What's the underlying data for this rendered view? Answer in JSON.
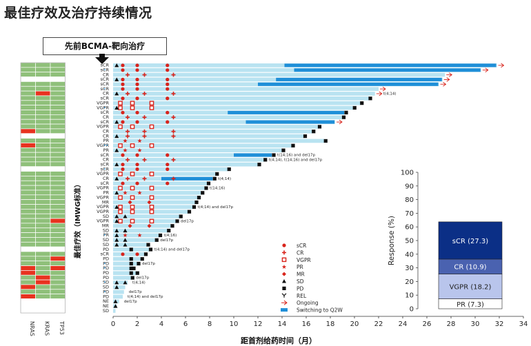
{
  "title": "最佳疗效及治疗持续情况",
  "prior_therapy_label": "先前BCMA-靶向治疗",
  "colors": {
    "bar_light": "#b9e3f1",
    "bar_switch": "#1f8fd8",
    "mutation_wt": "#8fc07a",
    "mutation_mut": "#e8321f",
    "mutation_na": "#ffffff",
    "marker_red": "#d8241c",
    "marker_black": "#111111",
    "resp_scr": "#0b2f86",
    "resp_cr": "#4a62b0",
    "resp_vgpr": "#b9c5ec",
    "resp_pr": "#ffffff"
  },
  "chart_data": [
    {
      "type": "swimmer",
      "xlabel": "距首剂给药时间（月）",
      "ylabel": "最佳疗效（IMWG标准）",
      "x_ticks": [
        0,
        2,
        4,
        6,
        8,
        10,
        12,
        14,
        16,
        18,
        20,
        22,
        24,
        26,
        28,
        30,
        32,
        34
      ],
      "xlim": [
        0,
        34
      ],
      "mutation_columns": [
        "NRAS",
        "KRAS",
        "TP53"
      ],
      "legend": [
        "sCR",
        "CR",
        "VGPR",
        "PR",
        "MR",
        "SD",
        "PD",
        "REL",
        "Ongoing",
        "Switching to Q2W"
      ],
      "patients": [
        {
          "resp": "sCR",
          "dur": 31.8,
          "ongoing": true,
          "switch": 14.2,
          "mark": "",
          "note": ""
        },
        {
          "resp": "sCR",
          "dur": 30.5,
          "ongoing": true,
          "switch": 15.0,
          "mark": "•",
          "note": ""
        },
        {
          "resp": "CR",
          "dur": 27.5,
          "ongoing": true,
          "switch": 0,
          "mark": "",
          "note": ""
        },
        {
          "resp": "sCR",
          "dur": 27.3,
          "ongoing": true,
          "switch": 13.5,
          "mark": "",
          "note": ""
        },
        {
          "resp": "sCR",
          "dur": 27.0,
          "ongoing": true,
          "switch": 12.0,
          "mark": "",
          "note": ""
        },
        {
          "resp": "sCR",
          "dur": 22.0,
          "ongoing": true,
          "switch": 0,
          "mark": "•",
          "note": ""
        },
        {
          "resp": "CR",
          "dur": 21.7,
          "ongoing": true,
          "switch": 0,
          "mark": "",
          "note": "t(4;14)"
        },
        {
          "resp": "sCR",
          "dur": 21.2,
          "ongoing": false,
          "switch": 0,
          "mark": "",
          "note": ""
        },
        {
          "resp": "VGPR",
          "dur": 20.5,
          "ongoing": false,
          "switch": 0,
          "mark": "",
          "note": ""
        },
        {
          "resp": "VGPR",
          "dur": 19.9,
          "ongoing": false,
          "switch": 0,
          "mark": "•",
          "note": ""
        },
        {
          "resp": "sCR",
          "dur": 19.2,
          "ongoing": false,
          "switch": 9.5,
          "mark": "",
          "note": ""
        },
        {
          "resp": "CR",
          "dur": 19.0,
          "ongoing": false,
          "switch": 0,
          "mark": "",
          "note": ""
        },
        {
          "resp": "sCR",
          "dur": 18.4,
          "ongoing": true,
          "switch": 11.0,
          "mark": "",
          "note": ""
        },
        {
          "resp": "VGPR",
          "dur": 17.0,
          "ongoing": false,
          "switch": 0,
          "mark": "",
          "note": ""
        },
        {
          "resp": "CR",
          "dur": 16.5,
          "ongoing": false,
          "switch": 0,
          "mark": "",
          "note": ""
        },
        {
          "resp": "CR",
          "dur": 15.8,
          "ongoing": false,
          "switch": 0,
          "mark": "",
          "note": ""
        },
        {
          "resp": "PR",
          "dur": 17.5,
          "ongoing": false,
          "switch": 0,
          "mark": "",
          "note": ""
        },
        {
          "resp": "VGPR",
          "dur": 14.8,
          "ongoing": false,
          "switch": 0,
          "mark": "••",
          "note": ""
        },
        {
          "resp": "PR",
          "dur": 14.0,
          "ongoing": false,
          "switch": 0,
          "mark": "",
          "note": ""
        },
        {
          "resp": "sCR",
          "dur": 13.2,
          "ongoing": false,
          "switch": 10.0,
          "mark": "",
          "note": "t(14;16) and del17p"
        },
        {
          "resp": "CR",
          "dur": 12.5,
          "ongoing": false,
          "switch": 0,
          "mark": "",
          "note": "t(4;14), t(14;16) and del17p"
        },
        {
          "resp": "sCR",
          "dur": 12.0,
          "ongoing": false,
          "switch": 0,
          "mark": "",
          "note": ""
        },
        {
          "resp": "sCR",
          "dur": 9.5,
          "ongoing": false,
          "switch": 0,
          "mark": "•",
          "note": ""
        },
        {
          "resp": "VGPR",
          "dur": 8.5,
          "ongoing": false,
          "switch": 0,
          "mark": "",
          "note": ""
        },
        {
          "resp": "CR",
          "dur": 8.3,
          "ongoing": false,
          "switch": 4.0,
          "mark": "",
          "note": "t(4;14)"
        },
        {
          "resp": "sCR",
          "dur": 7.8,
          "ongoing": false,
          "switch": 0,
          "mark": "",
          "note": ""
        },
        {
          "resp": "VGPR",
          "dur": 7.6,
          "ongoing": false,
          "switch": 0,
          "mark": "",
          "note": "t(14;16)"
        },
        {
          "resp": "PR",
          "dur": 7.3,
          "ongoing": false,
          "switch": 0,
          "mark": "",
          "note": ""
        },
        {
          "resp": "VGPR",
          "dur": 7.0,
          "ongoing": false,
          "switch": 0,
          "mark": "",
          "note": ""
        },
        {
          "resp": "MR",
          "dur": 6.8,
          "ongoing": false,
          "switch": 0,
          "mark": "",
          "note": ""
        },
        {
          "resp": "VGPR",
          "dur": 6.6,
          "ongoing": false,
          "switch": 0,
          "mark": "",
          "note": "t(4;14) and del17p"
        },
        {
          "resp": "VGPR",
          "dur": 6.2,
          "ongoing": false,
          "switch": 0,
          "mark": "",
          "note": ""
        },
        {
          "resp": "SD",
          "dur": 5.5,
          "ongoing": false,
          "switch": 0,
          "mark": "",
          "note": ""
        },
        {
          "resp": "VGPR",
          "dur": 5.2,
          "ongoing": false,
          "switch": 0,
          "mark": "",
          "note": "del17p"
        },
        {
          "resp": "MR",
          "dur": 4.8,
          "ongoing": false,
          "switch": 0,
          "mark": "",
          "note": ""
        },
        {
          "resp": "SD",
          "dur": 4.5,
          "ongoing": false,
          "switch": 0,
          "mark": "",
          "note": ""
        },
        {
          "resp": "PR",
          "dur": 3.8,
          "ongoing": false,
          "switch": 0,
          "mark": "•",
          "note": "t(4;16)"
        },
        {
          "resp": "SD",
          "dur": 3.5,
          "ongoing": false,
          "switch": 0,
          "mark": "",
          "note": "del17p"
        },
        {
          "resp": "SD",
          "dur": 2.8,
          "ongoing": false,
          "switch": 0,
          "mark": "",
          "note": ""
        },
        {
          "resp": "PD",
          "dur": 3.0,
          "ongoing": false,
          "switch": 0,
          "mark": "",
          "note": "t(4;14) and del17p"
        },
        {
          "resp": "sCR",
          "dur": 2.6,
          "ongoing": false,
          "switch": 0,
          "mark": "",
          "note": ""
        },
        {
          "resp": "PD",
          "dur": 2.3,
          "ongoing": false,
          "switch": 0,
          "mark": "",
          "note": ""
        },
        {
          "resp": "PD",
          "dur": 2.0,
          "ongoing": false,
          "switch": 0,
          "mark": "•",
          "note": "del17p"
        },
        {
          "resp": "PD",
          "dur": 1.6,
          "ongoing": false,
          "switch": 0,
          "mark": "•",
          "note": ""
        },
        {
          "resp": "PD",
          "dur": 1.9,
          "ongoing": false,
          "switch": 0,
          "mark": "",
          "note": ""
        },
        {
          "resp": "PD",
          "dur": 1.5,
          "ongoing": false,
          "switch": 0,
          "mark": "",
          "note": "del17p"
        },
        {
          "resp": "SD",
          "dur": 1.2,
          "ongoing": false,
          "switch": 0,
          "mark": "•",
          "note": "t(4;14)"
        },
        {
          "resp": "SD",
          "dur": 1.0,
          "ongoing": false,
          "switch": 0,
          "mark": "",
          "note": ""
        },
        {
          "resp": "PD",
          "dur": 0.9,
          "ongoing": false,
          "switch": 0,
          "mark": "•",
          "note": "del17p"
        },
        {
          "resp": "PD",
          "dur": 0.8,
          "ongoing": false,
          "switch": 0,
          "mark": "",
          "note": "t(4;14) and del17p"
        },
        {
          "resp": "NE",
          "dur": 0.5,
          "ongoing": false,
          "switch": 0,
          "mark": "",
          "note": "del17p"
        },
        {
          "resp": "NE",
          "dur": 0.3,
          "ongoing": false,
          "switch": 0,
          "mark": "",
          "note": ""
        },
        {
          "resp": "SD",
          "dur": 0.2,
          "ongoing": false,
          "switch": 0,
          "mark": "",
          "note": ""
        }
      ],
      "mutations": [
        [
          "wt",
          "wt",
          "wt"
        ],
        [
          "wt",
          "wt",
          "wt"
        ],
        [
          "wt",
          "wt",
          "wt"
        ],
        [
          "na",
          "na",
          "na"
        ],
        [
          "wt",
          "wt",
          "wt"
        ],
        [
          "wt",
          "wt",
          "wt"
        ],
        [
          "wt",
          "mut",
          "wt"
        ],
        [
          "wt",
          "wt",
          "wt"
        ],
        [
          "wt",
          "wt",
          "wt"
        ],
        [
          "wt",
          "wt",
          "wt"
        ],
        [
          "wt",
          "wt",
          "wt"
        ],
        [
          "wt",
          "wt",
          "wt"
        ],
        [
          "wt",
          "wt",
          "wt"
        ],
        [
          "wt",
          "wt",
          "wt"
        ],
        [
          "mut",
          "wt",
          "wt"
        ],
        [
          "na",
          "na",
          "na"
        ],
        [
          "wt",
          "wt",
          "wt"
        ],
        [
          "mut",
          "wt",
          "wt"
        ],
        [
          "wt",
          "wt",
          "wt"
        ],
        [
          "wt",
          "wt",
          "wt"
        ],
        [
          "wt",
          "wt",
          "wt"
        ],
        [
          "wt",
          "wt",
          "wt"
        ],
        [
          "na",
          "na",
          "na"
        ],
        [
          "wt",
          "wt",
          "wt"
        ],
        [
          "wt",
          "wt",
          "wt"
        ],
        [
          "wt",
          "wt",
          "wt"
        ],
        [
          "wt",
          "wt",
          "wt"
        ],
        [
          "wt",
          "wt",
          "wt"
        ],
        [
          "wt",
          "wt",
          "wt"
        ],
        [
          "wt",
          "wt",
          "wt"
        ],
        [
          "wt",
          "wt",
          "wt"
        ],
        [
          "wt",
          "wt",
          "wt"
        ],
        [
          "wt",
          "wt",
          "wt"
        ],
        [
          "wt",
          "wt",
          "mut"
        ],
        [
          "wt",
          "wt",
          "wt"
        ],
        [
          "wt",
          "wt",
          "wt"
        ],
        [
          "wt",
          "wt",
          "wt"
        ],
        [
          "wt",
          "wt",
          "wt"
        ],
        [
          "wt",
          "wt",
          "wt"
        ],
        [
          "na",
          "na",
          "na"
        ],
        [
          "wt",
          "wt",
          "wt"
        ],
        [
          "wt",
          "wt",
          "mut"
        ],
        [
          "wt",
          "wt",
          "wt"
        ],
        [
          "mut",
          "wt",
          "mut"
        ],
        [
          "mut",
          "wt",
          "wt"
        ],
        [
          "wt",
          "mut",
          "wt"
        ],
        [
          "wt",
          "mut",
          "wt"
        ],
        [
          "mut",
          "wt",
          "wt"
        ],
        [
          "wt",
          "wt",
          "wt"
        ],
        [
          "mut",
          "wt",
          "wt"
        ],
        [
          "na",
          "na",
          "na"
        ],
        [
          "na",
          "na",
          "na"
        ],
        [
          "na",
          "na",
          "na"
        ]
      ]
    },
    {
      "type": "bar",
      "subtype": "stacked",
      "ylabel": "Response (%)",
      "ylim": [
        0,
        100
      ],
      "yticks": [
        0,
        10,
        20,
        30,
        40,
        50,
        60,
        70,
        80,
        90,
        100
      ],
      "segments": [
        {
          "name": "PR",
          "value": 7.3,
          "label": "PR (7.3)"
        },
        {
          "name": "VGPR",
          "value": 18.2,
          "label": "VGPR (18.2)"
        },
        {
          "name": "CR",
          "value": 10.9,
          "label": "CR (10.9)"
        },
        {
          "name": "sCR",
          "value": 27.3,
          "label": "sCR (27.3)"
        }
      ]
    }
  ]
}
